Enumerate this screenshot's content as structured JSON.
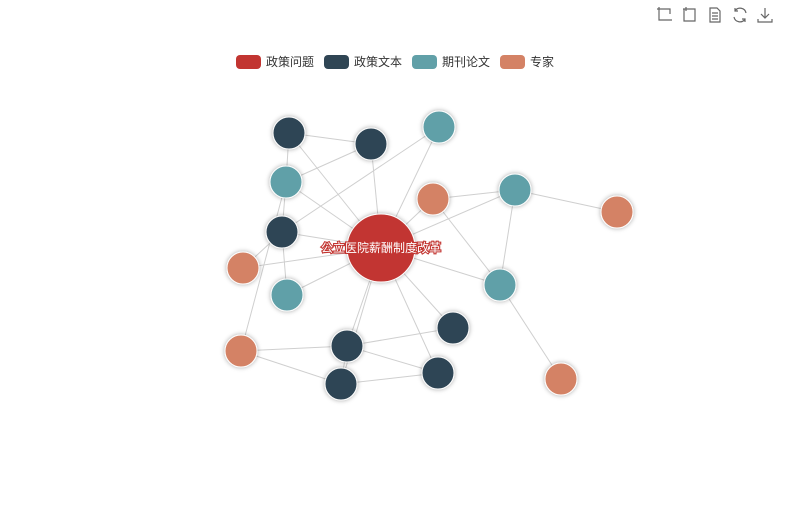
{
  "toolbox": {
    "items": [
      {
        "name": "zoom-select",
        "icon": "zoom-select-icon"
      },
      {
        "name": "zoom-back",
        "icon": "zoom-back-icon"
      },
      {
        "name": "data-view",
        "icon": "data-view-icon"
      },
      {
        "name": "restore",
        "icon": "restore-icon"
      },
      {
        "name": "save-image",
        "icon": "download-icon"
      }
    ]
  },
  "chart_data": {
    "type": "graph",
    "title": "",
    "legend": {
      "placement": "top-center",
      "categories": [
        {
          "label": "政策问题",
          "color": "#c23531"
        },
        {
          "label": "政策文本",
          "color": "#2f4554"
        },
        {
          "label": "期刊论文",
          "color": "#61a0a8"
        },
        {
          "label": "专家",
          "color": "#d48265"
        }
      ]
    },
    "nodes": [
      {
        "id": "n0",
        "label": "公立医院薪酬制度改革",
        "category": 0
      },
      {
        "id": "t1",
        "category": 1
      },
      {
        "id": "t2",
        "category": 1
      },
      {
        "id": "t3",
        "category": 1
      },
      {
        "id": "t4",
        "category": 1
      },
      {
        "id": "t5",
        "category": 1
      },
      {
        "id": "t6",
        "category": 1
      },
      {
        "id": "t7",
        "category": 1
      },
      {
        "id": "j1",
        "category": 2
      },
      {
        "id": "j2",
        "category": 2
      },
      {
        "id": "j3",
        "category": 2
      },
      {
        "id": "j4",
        "category": 2
      },
      {
        "id": "j5",
        "category": 2
      },
      {
        "id": "e1",
        "category": 3
      },
      {
        "id": "e2",
        "category": 3
      },
      {
        "id": "e3",
        "category": 3
      },
      {
        "id": "e4",
        "category": 3
      },
      {
        "id": "e5",
        "category": 3
      }
    ],
    "links": [
      [
        "n0",
        "t1"
      ],
      [
        "n0",
        "t2"
      ],
      [
        "n0",
        "t3"
      ],
      [
        "n0",
        "t4"
      ],
      [
        "n0",
        "t5"
      ],
      [
        "n0",
        "t6"
      ],
      [
        "n0",
        "t7"
      ],
      [
        "n0",
        "j1"
      ],
      [
        "n0",
        "j2"
      ],
      [
        "n0",
        "j3"
      ],
      [
        "n0",
        "j4"
      ],
      [
        "n0",
        "j5"
      ],
      [
        "n0",
        "e1"
      ],
      [
        "n0",
        "e2"
      ],
      [
        "t1",
        "t2"
      ],
      [
        "t1",
        "j2"
      ],
      [
        "t2",
        "j2"
      ],
      [
        "j2",
        "t3"
      ],
      [
        "t3",
        "e2"
      ],
      [
        "t3",
        "j5"
      ],
      [
        "t3",
        "j1"
      ],
      [
        "j2",
        "e3"
      ],
      [
        "e3",
        "t4"
      ],
      [
        "e3",
        "t6"
      ],
      [
        "t4",
        "t5"
      ],
      [
        "t4",
        "t6"
      ],
      [
        "t4",
        "t7"
      ],
      [
        "t6",
        "t7"
      ],
      [
        "j3",
        "e1"
      ],
      [
        "j3",
        "e4"
      ],
      [
        "j3",
        "j4"
      ],
      [
        "j4",
        "e5"
      ],
      [
        "e1",
        "j4"
      ]
    ]
  }
}
